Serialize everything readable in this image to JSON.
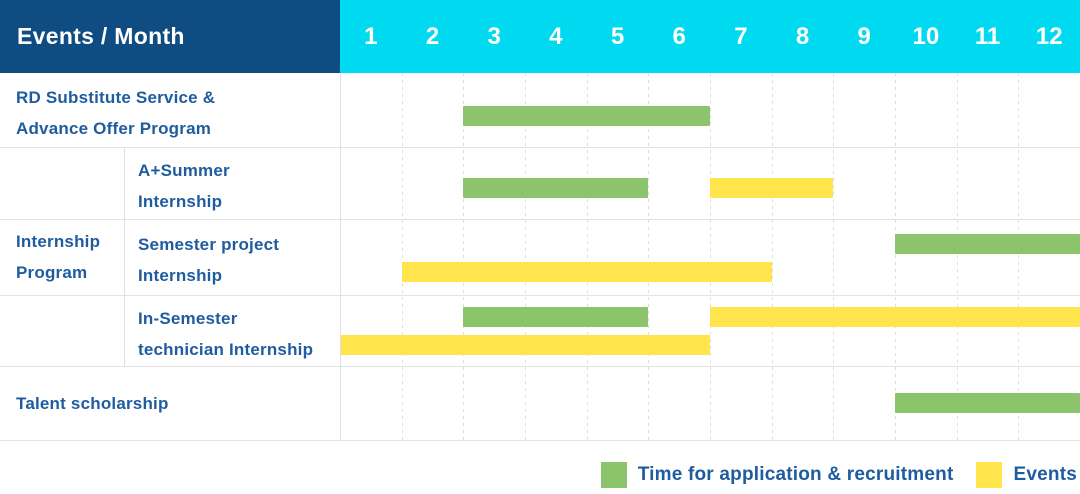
{
  "header": {
    "events_month_label": "Events / Month",
    "months": [
      "1",
      "2",
      "3",
      "4",
      "5",
      "6",
      "7",
      "8",
      "9",
      "10",
      "11",
      "12"
    ]
  },
  "colors": {
    "application": "#8bc46a",
    "event": "#ffe44c",
    "header_bg": "#0e4c82",
    "months_bg": "#00daf0",
    "label_text": "#1f5c9f"
  },
  "internship_group": {
    "lines": [
      "Internship",
      "Program"
    ]
  },
  "chart_data": {
    "type": "gantt",
    "x_unit": "month",
    "x_range": [
      1,
      12
    ],
    "grid": true,
    "legend_position": "bottom-right",
    "legend": [
      {
        "key": "application",
        "label": "Time for application & recruitment"
      },
      {
        "key": "event",
        "label": "Events"
      }
    ],
    "rows": [
      {
        "group": null,
        "label_lines": [
          "RD Substitute Service &",
          "Advance Offer Program"
        ],
        "bars": [
          {
            "type": "application",
            "start_month": 3,
            "end_month": 6,
            "lane": "single"
          }
        ]
      },
      {
        "group": "Internship Program",
        "label_lines": [
          "A+Summer",
          "Internship"
        ],
        "bars": [
          {
            "type": "application",
            "start_month": 3,
            "end_month": 5,
            "lane": "single"
          },
          {
            "type": "event",
            "start_month": 7,
            "end_month": 8,
            "lane": "single"
          }
        ]
      },
      {
        "group": "Internship Program",
        "label_lines": [
          "Semester project",
          "Internship"
        ],
        "bars": [
          {
            "type": "application",
            "start_month": 10,
            "end_month": 12,
            "lane": "top"
          },
          {
            "type": "event",
            "start_month": 2,
            "end_month": 7,
            "lane": "bottom"
          }
        ]
      },
      {
        "group": "Internship Program",
        "label_lines": [
          "In-Semester",
          "technician Internship"
        ],
        "bars": [
          {
            "type": "application",
            "start_month": 3,
            "end_month": 5,
            "lane": "top"
          },
          {
            "type": "event",
            "start_month": 7,
            "end_month": 12,
            "lane": "top"
          },
          {
            "type": "event",
            "start_month": 1,
            "end_month": 6,
            "lane": "bottom"
          }
        ]
      },
      {
        "group": null,
        "label_lines": [
          "Talent scholarship"
        ],
        "bars": [
          {
            "type": "application",
            "start_month": 10,
            "end_month": 12,
            "lane": "single"
          }
        ]
      }
    ]
  }
}
